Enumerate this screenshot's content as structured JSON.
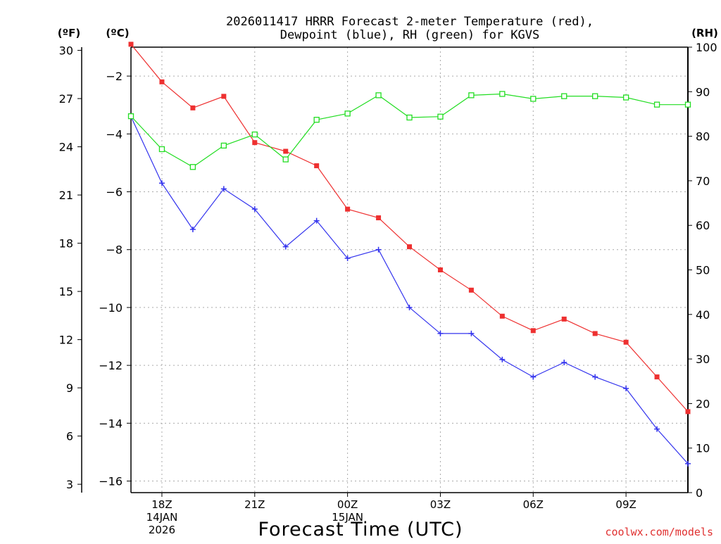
{
  "chart_data": {
    "type": "line",
    "title_line1": "2026011417 HRRR Forecast 2-meter Temperature (red),",
    "title_line2": "Dewpoint (blue), RH (green) for KGVS",
    "xlabel": "Forecast Time (UTC)",
    "watermark": "coolwx.com/models",
    "left_outer_unit": "(ºF)",
    "left_inner_unit": "(ºC)",
    "right_unit": "(RH)",
    "hours": [
      0,
      1,
      2,
      3,
      4,
      5,
      6,
      7,
      8,
      9,
      10,
      11,
      12,
      13,
      14,
      15,
      16,
      17,
      18
    ],
    "x_ticks": [
      {
        "hour": 1,
        "lines": [
          "18Z",
          "14JAN",
          "2026"
        ]
      },
      {
        "hour": 4,
        "lines": [
          "21Z"
        ]
      },
      {
        "hour": 7,
        "lines": [
          "00Z",
          "15JAN"
        ]
      },
      {
        "hour": 10,
        "lines": [
          "03Z"
        ]
      },
      {
        "hour": 13,
        "lines": [
          "06Z"
        ]
      },
      {
        "hour": 16,
        "lines": [
          "09Z"
        ]
      }
    ],
    "celsius_ticks": [
      "-2",
      "-4",
      "-6",
      "-8",
      "-10",
      "-12",
      "-14",
      "-16"
    ],
    "fahrenheit_ticks": [
      "30",
      "27",
      "24",
      "21",
      "18",
      "15",
      "12",
      "9",
      "6",
      "3"
    ],
    "rh_ticks": [
      "100",
      "90",
      "80",
      "70",
      "60",
      "50",
      "40",
      "30",
      "20",
      "10",
      "0"
    ],
    "ylim_celsius": [
      -16.4,
      -1.0
    ],
    "ylim_rh": [
      0,
      100
    ],
    "series": [
      {
        "name": "Temperature",
        "color": "#ee3030",
        "marker": "filled-square",
        "values": [
          -0.9,
          -2.2,
          -3.1,
          -2.7,
          -4.3,
          -4.6,
          -5.1,
          -6.6,
          -6.9,
          -7.9,
          -8.7,
          -9.4,
          -10.3,
          -10.8,
          -10.4,
          -10.9,
          -11.2,
          -12.4,
          -13.6
        ]
      },
      {
        "name": "Dewpoint",
        "color": "#3333ee",
        "marker": "plus",
        "values": [
          -3.4,
          -5.7,
          -7.3,
          -5.9,
          -6.6,
          -7.9,
          -7.0,
          -8.3,
          -8.0,
          -10.0,
          -10.9,
          -10.9,
          -11.8,
          -12.4,
          -11.9,
          -12.4,
          -12.8,
          -14.2,
          -15.4
        ]
      },
      {
        "name": "RH",
        "color": "#22dd22",
        "marker": "open-square",
        "axis": "right",
        "values": [
          84.5,
          77.1,
          73.1,
          77.9,
          80.4,
          74.8,
          83.7,
          85.1,
          89.2,
          84.2,
          84.4,
          89.2,
          89.5,
          88.4,
          89.0,
          89.0,
          88.7,
          87.1,
          87.1
        ]
      }
    ]
  }
}
